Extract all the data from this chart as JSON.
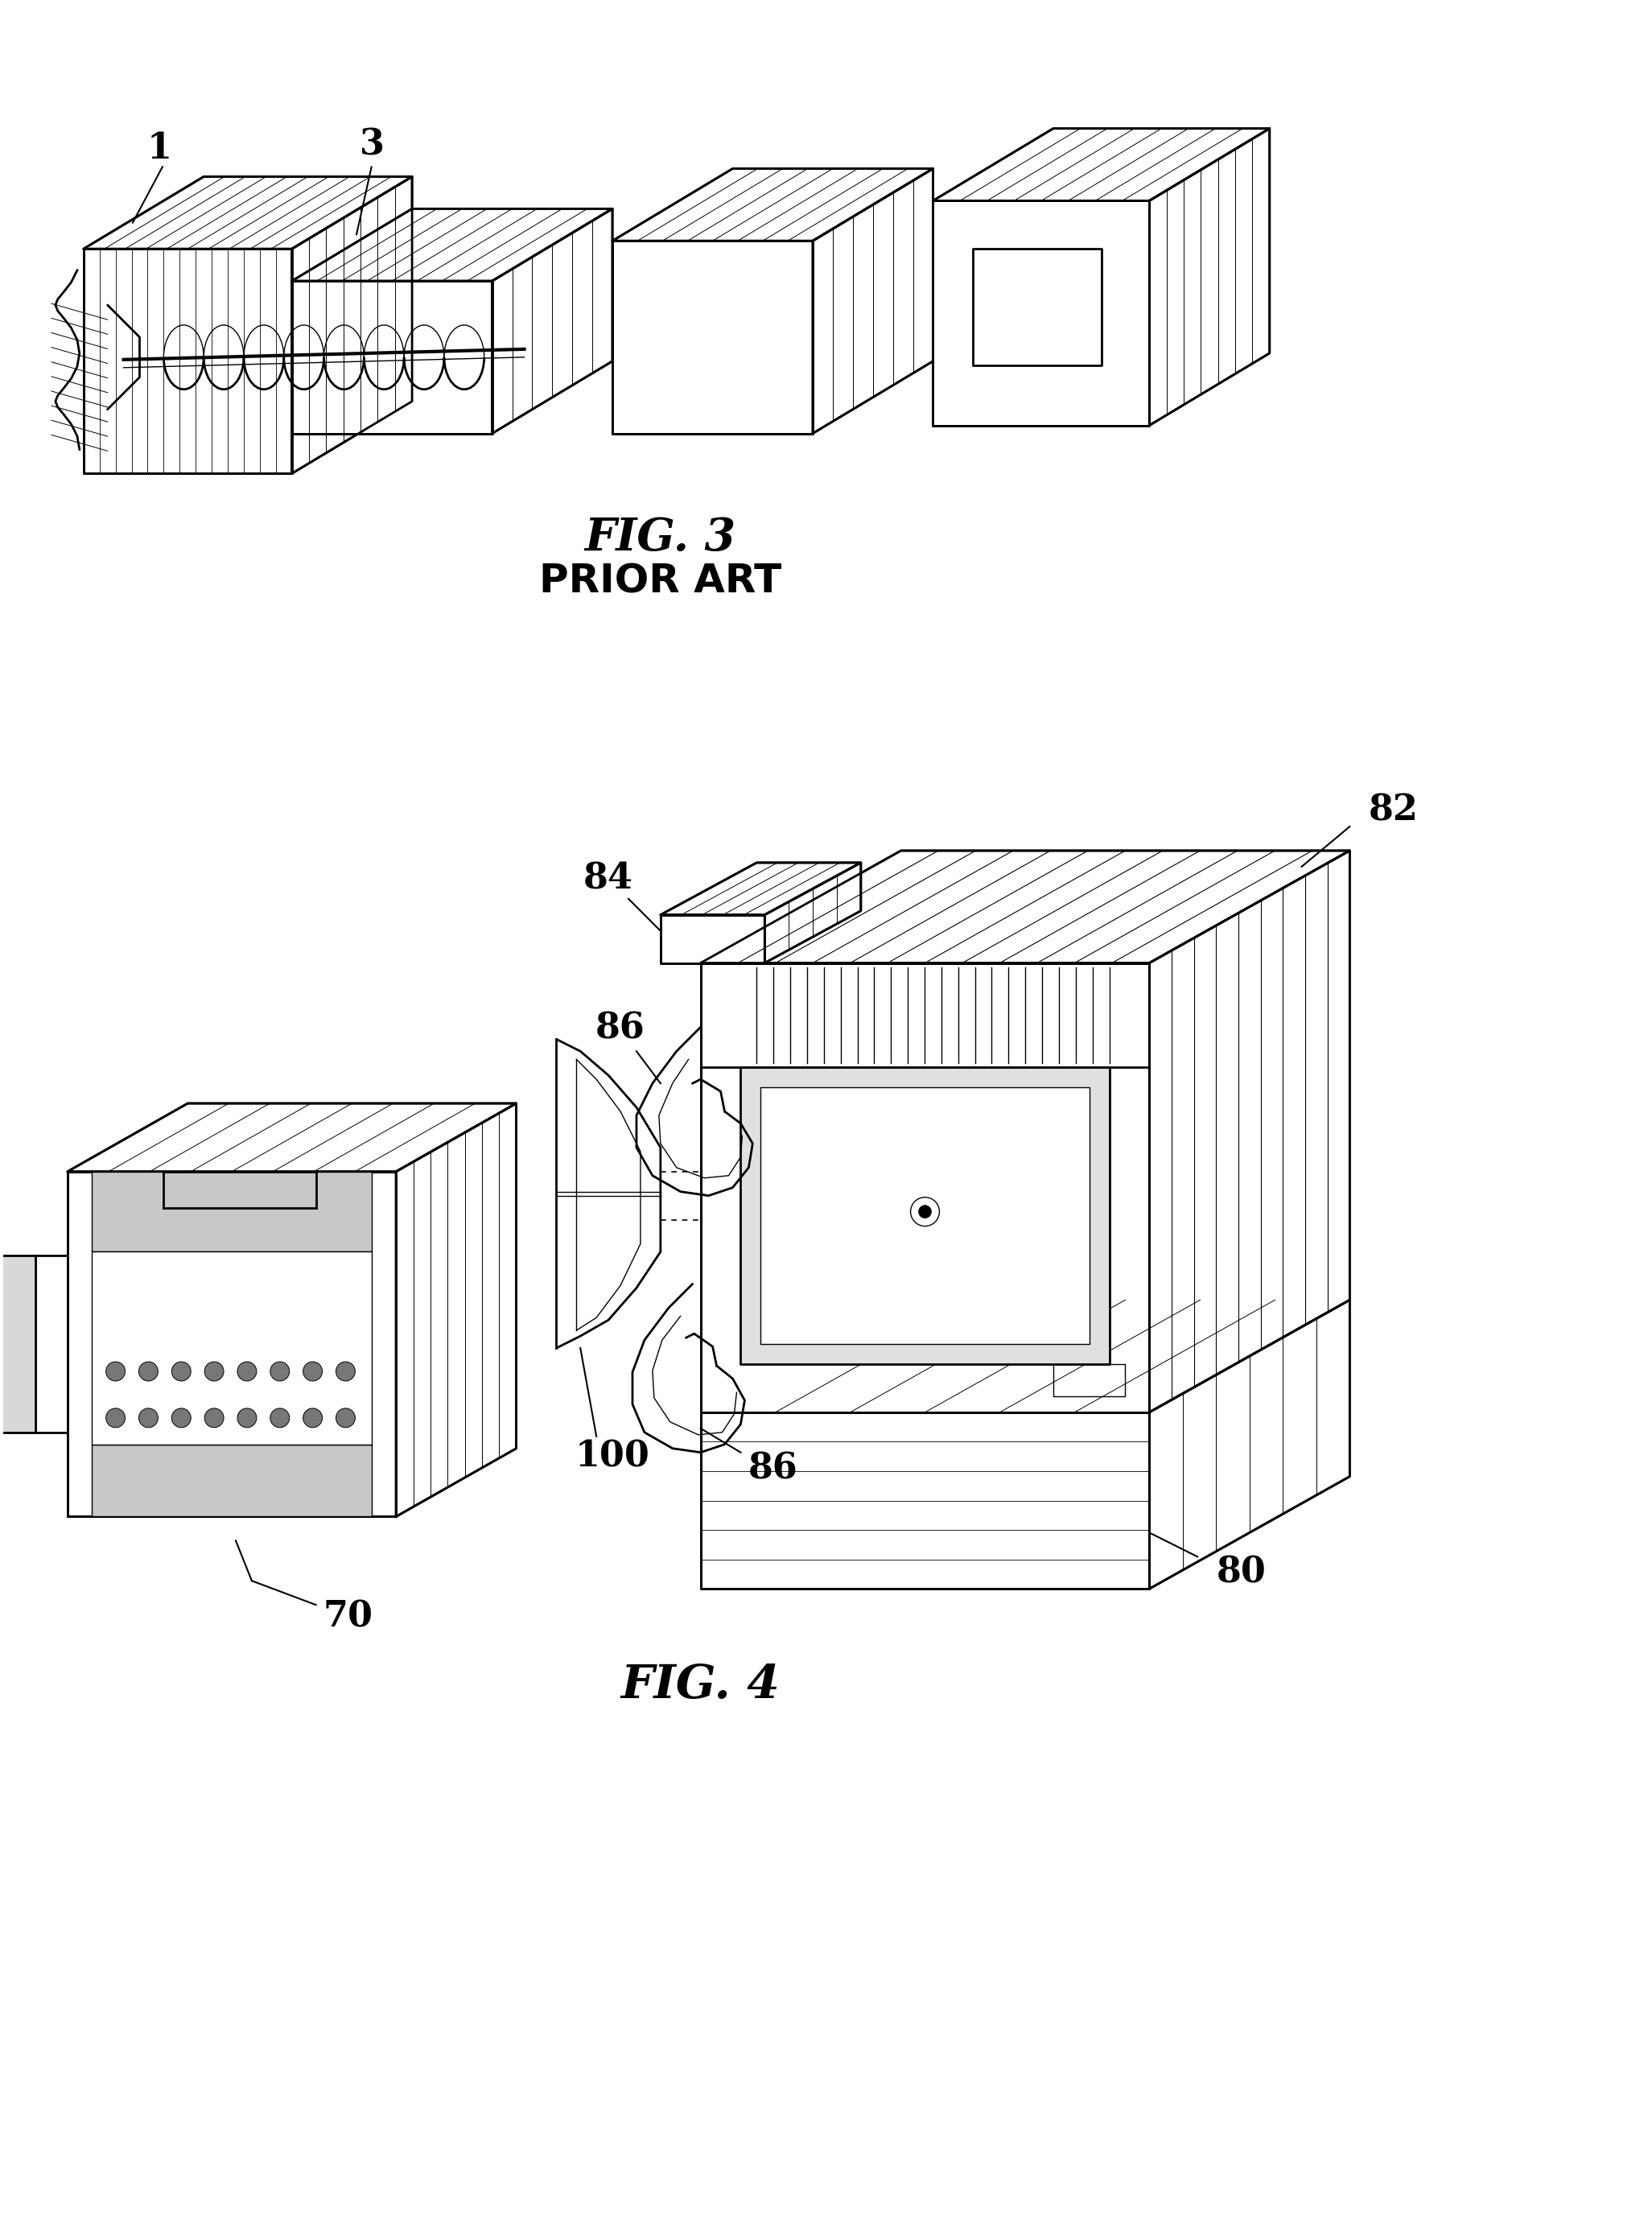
{
  "bg_color": "#ffffff",
  "line_color": "#000000",
  "fig_width": 20.53,
  "fig_height": 27.56,
  "fig3_label": "FIG. 3",
  "fig3_sub": "PRIOR ART",
  "fig4_label": "FIG. 4",
  "ref1_label": "1",
  "ref3_label": "3",
  "ref70_label": "70",
  "ref80_label": "80",
  "ref82_label": "82",
  "ref84_label": "84",
  "ref86a_label": "86",
  "ref86b_label": "86",
  "ref100_label": "100"
}
